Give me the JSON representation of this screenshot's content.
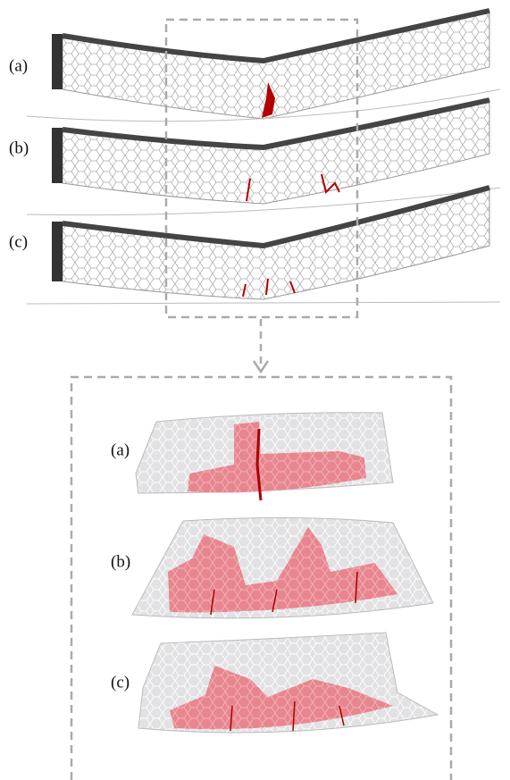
{
  "top": {
    "panels": [
      {
        "label": "(a)"
      },
      {
        "label": "(b)"
      },
      {
        "label": "(c)"
      }
    ]
  },
  "bottom": {
    "panels": [
      {
        "label": "(a)"
      },
      {
        "label": "(b)"
      },
      {
        "label": "(c)"
      }
    ]
  }
}
